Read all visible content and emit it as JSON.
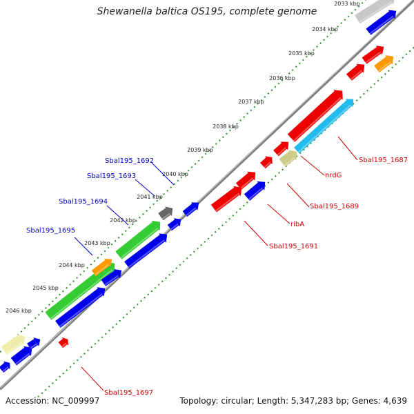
{
  "title": "Shewanella baltica OS195, complete genome",
  "footer": {
    "accession": "Accession: NC_009997",
    "summary": "Topology: circular; Length: 5,347,283 bp; Genes: 4,639"
  },
  "ticks": [
    "2033 kbp",
    "2034 kbp",
    "2035 kbp",
    "2036 kbp",
    "2037 kbp",
    "2038 kbp",
    "2039 kbp",
    "2040 kbp",
    "2041 kbp",
    "2042 kbp",
    "2043 kbp",
    "2044 kbp",
    "2045 kbp",
    "2046 kbp"
  ],
  "gene_labels": {
    "sbal1692": "Sbal195_1692",
    "sbal1693": "Sbal195_1693",
    "sbal1694": "Sbal195_1694",
    "sbal1695": "Sbal195_1695",
    "sbal1687": "Sbal195_1687",
    "nrdG": "nrdG",
    "sbal1689": "Sbal195_1689",
    "ribA": "ribA",
    "sbal1691": "Sbal195_1691",
    "sbal1697": "Sbal195_1697"
  },
  "colors": {
    "forward_label": "#0000cc",
    "reverse_label": "#cc0000",
    "backbone": "#808080",
    "tick_dots": "#2e8b2e",
    "red_gene": "#ee0000",
    "blue_gene": "#0000ee",
    "green_gene": "#33cc33",
    "cyan_gene": "#22bbee",
    "orange_gene": "#ff9900",
    "khaki_gene": "#cccc88",
    "pale_gene": "#eeeeaa",
    "gray_gene": "#666666",
    "silver_gene": "#c8c8c8"
  }
}
